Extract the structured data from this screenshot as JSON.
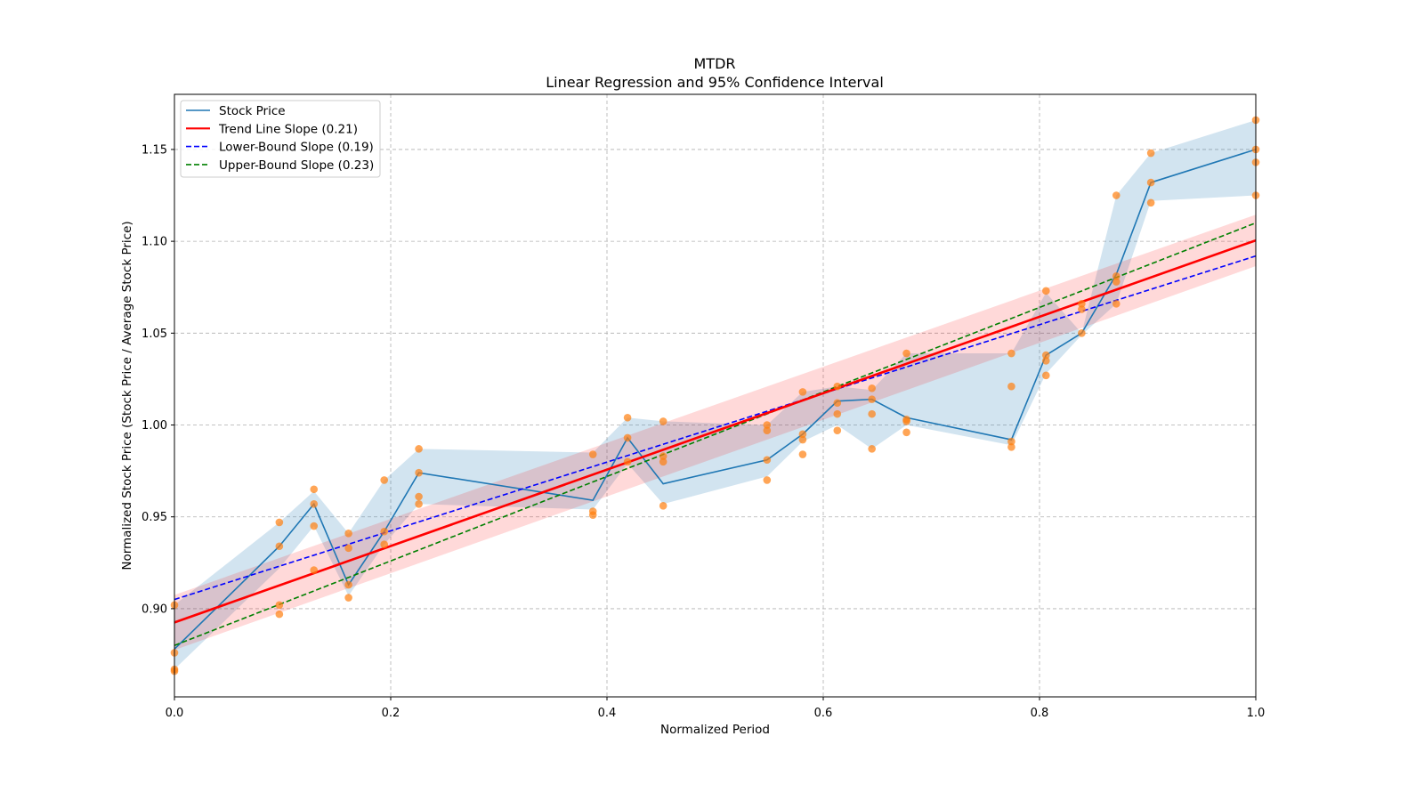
{
  "chart_data": {
    "type": "line",
    "title": "MTDR",
    "subtitle": "Linear Regression and 95% Confidence Interval",
    "xlabel": "Normalized Period",
    "ylabel": "Normalized Stock Price (Stock Price / Average Stock Price)",
    "xlim": [
      0.0,
      1.0
    ],
    "ylim": [
      0.852,
      1.18
    ],
    "xticks": [
      "0.0",
      "0.2",
      "0.4",
      "0.6",
      "0.8",
      "1.0"
    ],
    "yticks": [
      "0.90",
      "0.95",
      "1.00",
      "1.05",
      "1.10",
      "1.15"
    ],
    "grid": true,
    "legend_position": "top-left",
    "legend": [
      {
        "label": "Stock Price",
        "color": "#1f77b4",
        "style": "solid"
      },
      {
        "label": "Trend Line Slope (0.21)",
        "color": "#ff0000",
        "style": "solid"
      },
      {
        "label": "Lower-Bound Slope (0.19)",
        "color": "#0000ff",
        "style": "dashed"
      },
      {
        "label": "Upper-Bound Slope (0.23)",
        "color": "#008000",
        "style": "dashed"
      }
    ],
    "series": [
      {
        "name": "Stock Price",
        "x": [
          0.0,
          0.097,
          0.129,
          0.161,
          0.194,
          0.226,
          0.387,
          0.419,
          0.452,
          0.548,
          0.581,
          0.613,
          0.645,
          0.677,
          0.774,
          0.806,
          0.839,
          0.871,
          0.903,
          1.0
        ],
        "y": [
          0.878,
          0.934,
          0.957,
          0.913,
          0.942,
          0.974,
          0.959,
          0.993,
          0.968,
          0.981,
          0.995,
          1.013,
          1.014,
          1.004,
          0.992,
          1.038,
          1.05,
          1.082,
          1.132,
          1.15
        ],
        "band_lower": [
          0.867,
          0.922,
          0.945,
          0.907,
          0.935,
          0.957,
          0.954,
          0.979,
          0.957,
          0.972,
          0.991,
          1.0,
          0.987,
          1.0,
          0.989,
          1.028,
          1.049,
          1.066,
          1.122,
          1.125
        ],
        "band_upper": [
          0.902,
          0.947,
          0.964,
          0.941,
          0.97,
          0.987,
          0.985,
          1.004,
          1.002,
          1.0,
          1.018,
          1.021,
          1.019,
          1.039,
          1.039,
          1.072,
          1.05,
          1.125,
          1.148,
          1.166
        ]
      },
      {
        "name": "Observations",
        "x": [
          0.0,
          0.0,
          0.0,
          0.0,
          0.097,
          0.097,
          0.097,
          0.097,
          0.129,
          0.129,
          0.129,
          0.129,
          0.161,
          0.161,
          0.161,
          0.161,
          0.194,
          0.194,
          0.194,
          0.226,
          0.226,
          0.226,
          0.226,
          0.387,
          0.387,
          0.387,
          0.419,
          0.419,
          0.419,
          0.452,
          0.452,
          0.452,
          0.452,
          0.548,
          0.548,
          0.548,
          0.548,
          0.581,
          0.581,
          0.581,
          0.581,
          0.613,
          0.613,
          0.613,
          0.613,
          0.645,
          0.645,
          0.645,
          0.645,
          0.677,
          0.677,
          0.677,
          0.677,
          0.774,
          0.774,
          0.774,
          0.774,
          0.806,
          0.806,
          0.806,
          0.806,
          0.839,
          0.839,
          0.839,
          0.871,
          0.871,
          0.871,
          0.871,
          0.903,
          0.903,
          0.903,
          1.0,
          1.0,
          1.0,
          1.0
        ],
        "y": [
          0.902,
          0.876,
          0.867,
          0.866,
          0.947,
          0.934,
          0.902,
          0.897,
          0.965,
          0.957,
          0.945,
          0.921,
          0.941,
          0.933,
          0.913,
          0.906,
          0.97,
          0.942,
          0.935,
          0.987,
          0.974,
          0.961,
          0.957,
          0.984,
          0.953,
          0.951,
          1.004,
          0.993,
          0.98,
          1.002,
          0.983,
          0.98,
          0.956,
          1.0,
          0.997,
          0.981,
          0.97,
          1.018,
          0.995,
          0.992,
          0.984,
          1.021,
          1.012,
          1.006,
          0.997,
          1.02,
          1.014,
          1.006,
          0.987,
          1.039,
          1.003,
          1.002,
          0.996,
          1.039,
          1.021,
          0.991,
          0.988,
          1.073,
          1.038,
          1.035,
          1.027,
          1.066,
          1.063,
          1.05,
          1.125,
          1.081,
          1.078,
          1.066,
          1.148,
          1.132,
          1.121,
          1.166,
          1.15,
          1.143,
          1.125
        ]
      },
      {
        "name": "Trend Line Slope (0.21)",
        "x": [
          0.0,
          1.0
        ],
        "y": [
          0.8925,
          1.1005
        ],
        "band_lower": [
          0.8775,
          1.0865
        ],
        "band_upper": [
          0.9075,
          1.1145
        ]
      },
      {
        "name": "Lower-Bound Slope (0.19)",
        "x": [
          0.0,
          1.0
        ],
        "y": [
          0.905,
          1.092
        ]
      },
      {
        "name": "Upper-Bound Slope (0.23)",
        "x": [
          0.0,
          1.0
        ],
        "y": [
          0.88,
          1.11
        ]
      }
    ]
  }
}
